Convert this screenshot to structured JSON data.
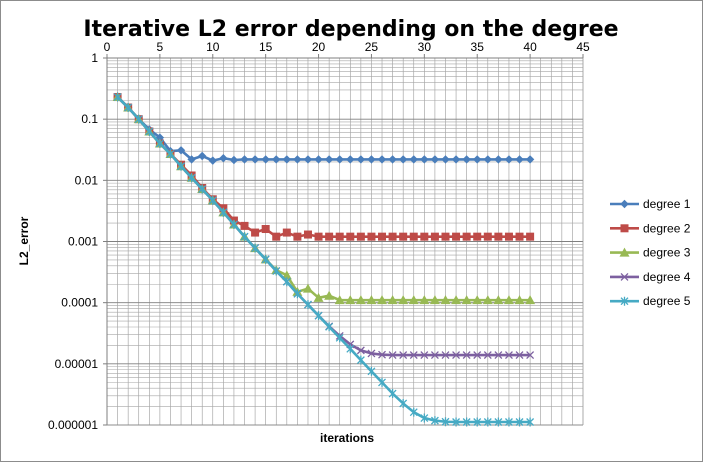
{
  "chart_data": {
    "type": "line",
    "title": "Iterative L2 error depending on the degree",
    "xlabel": "iterations",
    "ylabel": "L2_error",
    "xlim": [
      0,
      45
    ],
    "ylim": [
      1e-06,
      1
    ],
    "yscale": "log",
    "x_ticks": [
      "0",
      "5",
      "10",
      "15",
      "20",
      "25",
      "30",
      "35",
      "40",
      "45"
    ],
    "y_ticks": [
      "1",
      "0.1",
      "0.01",
      "0.001",
      "0.0001",
      "0.00001",
      "0.000001"
    ],
    "grid": true,
    "legend_position": "right",
    "x": [
      1,
      2,
      3,
      4,
      5,
      6,
      7,
      8,
      9,
      10,
      11,
      12,
      13,
      14,
      15,
      16,
      17,
      18,
      19,
      20,
      21,
      22,
      23,
      24,
      25,
      26,
      27,
      28,
      29,
      30,
      31,
      32,
      33,
      34,
      35,
      36,
      37,
      38,
      39,
      40
    ],
    "series": [
      {
        "name": "degree 1",
        "color": "#4a7ebb",
        "marker": "diamond",
        "values": [
          0.23,
          0.155,
          0.1,
          0.068,
          0.05,
          0.03,
          0.031,
          0.022,
          0.025,
          0.021,
          0.023,
          0.0215,
          0.022,
          0.022,
          0.022,
          0.022,
          0.022,
          0.022,
          0.022,
          0.022,
          0.022,
          0.022,
          0.022,
          0.022,
          0.022,
          0.022,
          0.022,
          0.022,
          0.022,
          0.022,
          0.022,
          0.022,
          0.022,
          0.022,
          0.022,
          0.022,
          0.022,
          0.022,
          0.022,
          0.022
        ]
      },
      {
        "name": "degree 2",
        "color": "#be4b48",
        "marker": "square",
        "values": [
          0.23,
          0.155,
          0.1,
          0.063,
          0.04,
          0.027,
          0.018,
          0.012,
          0.0075,
          0.0049,
          0.0035,
          0.0022,
          0.0018,
          0.0014,
          0.0016,
          0.0012,
          0.0014,
          0.0012,
          0.0013,
          0.0012,
          0.0012,
          0.0012,
          0.0012,
          0.0012,
          0.0012,
          0.0012,
          0.0012,
          0.0012,
          0.0012,
          0.0012,
          0.0012,
          0.0012,
          0.0012,
          0.0012,
          0.0012,
          0.0012,
          0.0012,
          0.0012,
          0.0012,
          0.0012
        ]
      },
      {
        "name": "degree 3",
        "color": "#98b954",
        "marker": "triangle",
        "values": [
          0.23,
          0.155,
          0.1,
          0.063,
          0.04,
          0.027,
          0.017,
          0.011,
          0.0072,
          0.0047,
          0.003,
          0.0019,
          0.0012,
          0.00078,
          0.00051,
          0.00034,
          0.00028,
          0.00015,
          0.00017,
          0.00012,
          0.00013,
          0.00011,
          0.00011,
          0.00011,
          0.00011,
          0.00011,
          0.00011,
          0.00011,
          0.00011,
          0.00011,
          0.00011,
          0.00011,
          0.00011,
          0.00011,
          0.00011,
          0.00011,
          0.00011,
          0.00011,
          0.00011,
          0.00011
        ]
      },
      {
        "name": "degree 4",
        "color": "#7d60a0",
        "marker": "x",
        "values": [
          0.23,
          0.155,
          0.1,
          0.063,
          0.04,
          0.027,
          0.017,
          0.011,
          0.0072,
          0.0047,
          0.003,
          0.0019,
          0.0012,
          0.00078,
          0.00051,
          0.00033,
          0.00022,
          0.00014,
          9.29e-05,
          6.13e-05,
          4.1e-05,
          2.86e-05,
          2.08e-05,
          1.66e-05,
          1.48e-05,
          1.41e-05,
          1.39e-05,
          1.39e-05,
          1.39e-05,
          1.39e-05,
          1.39e-05,
          1.39e-05,
          1.39e-05,
          1.39e-05,
          1.39e-05,
          1.39e-05,
          1.39e-05,
          1.39e-05,
          1.39e-05,
          1.39e-05
        ]
      },
      {
        "name": "degree 5",
        "color": "#46aac4",
        "marker": "star",
        "values": [
          0.23,
          0.155,
          0.1,
          0.063,
          0.04,
          0.027,
          0.017,
          0.011,
          0.0072,
          0.0047,
          0.003,
          0.0019,
          0.0012,
          0.00078,
          0.00051,
          0.00033,
          0.00022,
          0.00014,
          9.29e-05,
          6.13e-05,
          4.03e-05,
          2.66e-05,
          1.76e-05,
          1.15e-05,
          7.55e-06,
          4.97e-06,
          3.27e-06,
          2.25e-06,
          1.62e-06,
          1.3e-06,
          1.18e-06,
          1.13e-06,
          1.12e-06,
          1.12e-06,
          1.12e-06,
          1.12e-06,
          1.12e-06,
          1.12e-06,
          1.12e-06,
          1.12e-06
        ]
      }
    ]
  }
}
